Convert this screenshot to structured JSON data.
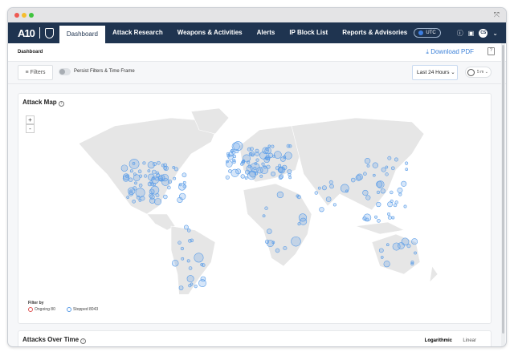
{
  "window": {
    "expand_icon": "expand-icon",
    "dot_colors": [
      "#ee5a52",
      "#f5bd2f",
      "#3fc43f"
    ]
  },
  "nav": {
    "logo": "A10",
    "tabs": [
      {
        "label": "Dashboard",
        "active": true
      },
      {
        "label": "Attack Research"
      },
      {
        "label": "Weapons & Activities"
      },
      {
        "label": "Alerts"
      },
      {
        "label": "IP Block List"
      },
      {
        "label": "Reports & Advisories"
      }
    ],
    "timezone": "UTC",
    "avatar": "CS"
  },
  "breadcrumb": {
    "title": "Dashboard",
    "download": "Download PDF"
  },
  "filterbar": {
    "filters": "Filters",
    "persist": "Persist Filters & Time Frame",
    "persist_on": false,
    "time_range": "Last 24 Hours",
    "refresh": "5 m"
  },
  "attack_map": {
    "title": "Attack Map",
    "zoom_in": "+",
    "zoom_out": "-",
    "filter_by": "Filter by",
    "ongoing": "Ongoing 80",
    "stopped": "Stopped 8043",
    "ongoing_color": "#e05555",
    "stopped_color": "#5a9de8",
    "land_color": "#e6e6e6"
  },
  "attacks_over_time": {
    "title": "Attacks Over Time",
    "scale_options": [
      "Logarithmic",
      "Linear"
    ],
    "selected_scale": "Logarithmic"
  }
}
